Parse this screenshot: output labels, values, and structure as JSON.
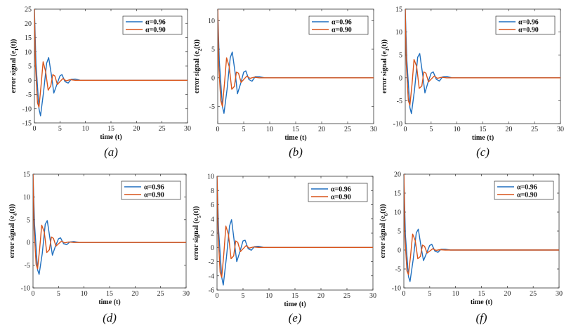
{
  "chart_data": [
    {
      "type": "line",
      "letter": "(a)",
      "xlabel": "time (t)",
      "ylabel": "error signal (e",
      "ylabel_sub": "1",
      "ylabel_end": "(t))",
      "xlim": [
        0,
        30
      ],
      "ylim": [
        -15,
        25
      ],
      "xticks": [
        0,
        5,
        10,
        15,
        20,
        25,
        30
      ],
      "yticks": [
        -15,
        -10,
        -5,
        0,
        5,
        10,
        15,
        20,
        25
      ],
      "legend_position": "top-right",
      "series": [
        {
          "name": "α=0.96",
          "color": "#1f6fbf",
          "x": [
            0,
            0.3,
            0.9,
            1.2,
            1.8,
            2.4,
            2.8,
            3.4,
            3.8,
            4.4,
            5,
            5.4,
            6,
            6.6,
            7.2,
            8,
            9,
            10,
            12,
            30
          ],
          "y": [
            25,
            6,
            -10,
            -12.5,
            -4,
            6,
            8,
            1,
            -4.5,
            -1.5,
            1.5,
            2,
            -0.5,
            -1,
            0.3,
            0.4,
            0,
            0,
            0,
            0
          ]
        },
        {
          "name": "α=0.90",
          "color": "#d9541a",
          "x": [
            0,
            0.2,
            0.6,
            0.9,
            1.3,
            1.7,
            2.2,
            2.7,
            3.2,
            3.6,
            4,
            4.5,
            5,
            5.6,
            6.2,
            7,
            8,
            9,
            30
          ],
          "y": [
            25,
            5,
            -8,
            -9.5,
            -2,
            6.5,
            3,
            -3.5,
            -2,
            2,
            1.5,
            -1.5,
            -0.5,
            0.6,
            -0.2,
            0.2,
            0,
            0,
            0
          ]
        }
      ]
    },
    {
      "type": "line",
      "letter": "(b)",
      "xlabel": "time (t)",
      "ylabel": "error signal (e",
      "ylabel_sub": "2",
      "ylabel_end": "(t))",
      "xlim": [
        0,
        30
      ],
      "ylim": [
        -8,
        12
      ],
      "xticks": [
        0,
        5,
        10,
        15,
        20,
        25,
        30
      ],
      "yticks": [
        -5,
        0,
        5,
        10
      ],
      "legend_position": "top-right",
      "series": [
        {
          "name": "α=0.96",
          "color": "#1f6fbf",
          "x": [
            0,
            0.3,
            0.9,
            1.2,
            1.8,
            2.4,
            2.8,
            3.4,
            3.8,
            4.4,
            5,
            5.4,
            6,
            6.6,
            7.2,
            8,
            9,
            10,
            12,
            30
          ],
          "y": [
            12,
            3,
            -5,
            -6.2,
            -2,
            3.5,
            4.5,
            0.5,
            -2.8,
            -1,
            1,
            1.2,
            -0.3,
            -0.6,
            0.2,
            0.2,
            0,
            0,
            0,
            0
          ]
        },
        {
          "name": "α=0.90",
          "color": "#d9541a",
          "x": [
            0,
            0.2,
            0.6,
            0.9,
            1.3,
            1.7,
            2.2,
            2.7,
            3.2,
            3.6,
            4,
            4.5,
            5,
            5.6,
            6.2,
            7,
            8,
            9,
            30
          ],
          "y": [
            12,
            2,
            -4,
            -5,
            -1,
            3.5,
            2,
            -2,
            -1.5,
            1,
            0.8,
            -0.8,
            -0.3,
            0.3,
            -0.1,
            0.1,
            0,
            0,
            0
          ]
        }
      ]
    },
    {
      "type": "line",
      "letter": "(c)",
      "xlabel": "time (t)",
      "ylabel": "error signal (e",
      "ylabel_sub": "3",
      "ylabel_end": "(t))",
      "xlim": [
        0,
        30
      ],
      "ylim": [
        -10,
        15
      ],
      "xticks": [
        0,
        5,
        10,
        15,
        20,
        25,
        30
      ],
      "yticks": [
        -10,
        -5,
        0,
        5,
        10,
        15
      ],
      "legend_position": "top-right",
      "series": [
        {
          "name": "α=0.96",
          "color": "#1f6fbf",
          "x": [
            0,
            0.3,
            0.9,
            1.2,
            1.8,
            2.4,
            2.8,
            3.4,
            3.8,
            4.4,
            5,
            5.4,
            6,
            6.6,
            7.2,
            8,
            9,
            10,
            12,
            30
          ],
          "y": [
            15,
            4,
            -6.5,
            -7.8,
            -2.5,
            4.5,
            5.3,
            0.5,
            -3.3,
            -1,
            1,
            1.3,
            -0.3,
            -0.7,
            0.2,
            0.3,
            0,
            0,
            0,
            0
          ]
        },
        {
          "name": "α=0.90",
          "color": "#d9541a",
          "x": [
            0,
            0.2,
            0.6,
            0.9,
            1.3,
            1.7,
            2.2,
            2.7,
            3.2,
            3.6,
            4,
            4.5,
            5,
            5.6,
            6.2,
            7,
            8,
            9,
            30
          ],
          "y": [
            15,
            3,
            -5,
            -6,
            -1.5,
            4,
            2.5,
            -2.3,
            -1.8,
            1.3,
            1,
            -0.9,
            -0.3,
            0.4,
            -0.1,
            0.1,
            0,
            0,
            0
          ]
        }
      ]
    },
    {
      "type": "line",
      "letter": "(d)",
      "xlabel": "time (t)",
      "ylabel": "error signal (e",
      "ylabel_sub": "4",
      "ylabel_end": "(t))",
      "xlim": [
        0,
        30
      ],
      "ylim": [
        -10,
        15
      ],
      "xticks": [
        0,
        5,
        10,
        15,
        20,
        25,
        30
      ],
      "yticks": [
        -10,
        -5,
        0,
        5,
        10,
        15
      ],
      "legend_position": "top-right",
      "series": [
        {
          "name": "α=0.96",
          "color": "#1f6fbf",
          "x": [
            0,
            0.3,
            0.9,
            1.2,
            1.8,
            2.4,
            2.8,
            3.4,
            3.8,
            4.4,
            5,
            5.4,
            6,
            6.6,
            7.2,
            8,
            9,
            10,
            12,
            30
          ],
          "y": [
            15,
            4,
            -6,
            -7,
            -2.5,
            4,
            4.8,
            0.3,
            -2.8,
            -0.8,
            0.8,
            1,
            -0.3,
            -0.5,
            0.1,
            0.2,
            0,
            0,
            0,
            0
          ]
        },
        {
          "name": "α=0.90",
          "color": "#d9541a",
          "x": [
            0,
            0.2,
            0.6,
            0.9,
            1.3,
            1.7,
            2.2,
            2.7,
            3.2,
            3.6,
            4,
            4.5,
            5,
            5.6,
            6.2,
            7,
            8,
            9,
            30
          ],
          "y": [
            15,
            3,
            -4.8,
            -5.8,
            -1.5,
            3.8,
            2.3,
            -2.2,
            -1.6,
            1.2,
            0.9,
            -0.8,
            -0.3,
            0.3,
            -0.1,
            0.1,
            0,
            0,
            0
          ]
        }
      ]
    },
    {
      "type": "line",
      "letter": "(e)",
      "xlabel": "time (t)",
      "ylabel": "error signal (e",
      "ylabel_sub": "5",
      "ylabel_end": "(t))",
      "xlim": [
        0,
        30
      ],
      "ylim": [
        -6,
        10
      ],
      "xticks": [
        0,
        5,
        10,
        15,
        20,
        25,
        30
      ],
      "yticks": [
        -6,
        -4,
        -2,
        0,
        2,
        4,
        6,
        8,
        10
      ],
      "legend_position": "top-right",
      "series": [
        {
          "name": "α=0.96",
          "color": "#1f6fbf",
          "x": [
            0,
            0.3,
            0.9,
            1.2,
            1.8,
            2.4,
            2.8,
            3.4,
            3.8,
            4.4,
            5,
            5.4,
            6,
            6.6,
            7.2,
            8,
            9,
            10,
            12,
            30
          ],
          "y": [
            10,
            2.5,
            -4.2,
            -5.3,
            -1.5,
            3,
            3.9,
            0.3,
            -2,
            -0.6,
            0.9,
            1,
            -0.2,
            -0.4,
            0.1,
            0.15,
            0,
            0,
            0,
            0
          ]
        },
        {
          "name": "α=0.90",
          "color": "#d9541a",
          "x": [
            0,
            0.2,
            0.6,
            0.9,
            1.3,
            1.7,
            2.2,
            2.7,
            3.2,
            3.6,
            4,
            4.5,
            5,
            5.6,
            6.2,
            7,
            8,
            9,
            30
          ],
          "y": [
            10,
            2,
            -3.5,
            -4.2,
            -1,
            3,
            1.8,
            -1.6,
            -1.2,
            0.9,
            0.7,
            -0.6,
            -0.2,
            0.25,
            -0.1,
            0.05,
            0,
            0,
            0
          ]
        }
      ]
    },
    {
      "type": "line",
      "letter": "(f)",
      "xlabel": "time (t)",
      "ylabel": "error signal (e",
      "ylabel_sub": "6",
      "ylabel_end": "(t))",
      "xlim": [
        0,
        30
      ],
      "ylim": [
        -10,
        20
      ],
      "xticks": [
        0,
        5,
        10,
        15,
        20,
        25,
        30
      ],
      "yticks": [
        -10,
        -5,
        0,
        5,
        10,
        15,
        20
      ],
      "legend_position": "top-right",
      "series": [
        {
          "name": "α=0.96",
          "color": "#1f6fbf",
          "x": [
            0,
            0.3,
            0.9,
            1.2,
            1.8,
            2.4,
            2.8,
            3.4,
            3.8,
            4.4,
            5,
            5.4,
            6,
            6.6,
            7.2,
            8,
            9,
            10,
            12,
            30
          ],
          "y": [
            20,
            4,
            -7,
            -8.3,
            -2.5,
            4.5,
            5.5,
            0.3,
            -2.8,
            -0.8,
            1.2,
            1.5,
            -0.3,
            -0.6,
            0.2,
            0.2,
            0,
            0,
            0,
            0
          ]
        },
        {
          "name": "α=0.90",
          "color": "#d9541a",
          "x": [
            0,
            0.2,
            0.6,
            0.9,
            1.3,
            1.7,
            2.2,
            2.7,
            3.2,
            3.6,
            4,
            4.5,
            5,
            5.6,
            6.2,
            7,
            8,
            9,
            30
          ],
          "y": [
            20,
            3.5,
            -5.5,
            -6.5,
            -1.5,
            4.2,
            2.5,
            -2.3,
            -1.7,
            1.3,
            1,
            -0.8,
            -0.3,
            0.35,
            -0.1,
            0.1,
            0,
            0,
            0
          ]
        }
      ]
    }
  ]
}
